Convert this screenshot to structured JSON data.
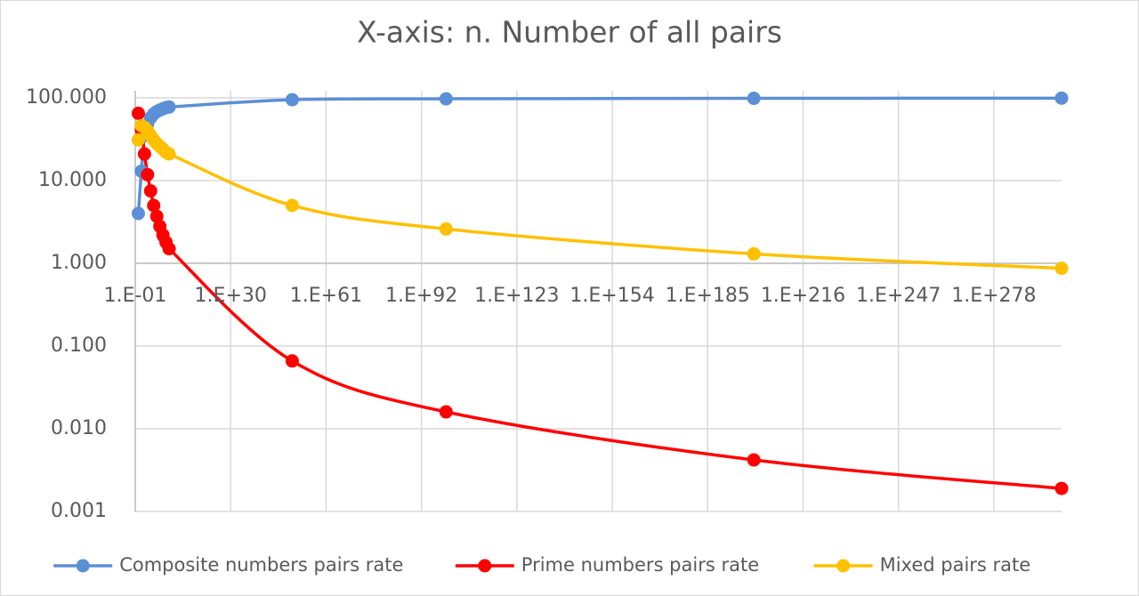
{
  "chart_data": {
    "type": "line",
    "title": "X-axis: n. Number of all pairs",
    "x_log": true,
    "y_log": true,
    "grid": true,
    "legend": "bottom",
    "smooth": true,
    "x_axis_crosses_at": 1,
    "x": [
      1,
      10,
      100,
      1000,
      10000,
      100000,
      1000000,
      10000000,
      100000000,
      1000000000,
      10000000000,
      1e+50,
      1e+100,
      1e+200,
      1e+300
    ],
    "xlim": [
      0.1,
      1e+300
    ],
    "xticks": [
      {
        "value": 0.1,
        "label": "1.E-01"
      },
      {
        "value": 1e+30,
        "label": "1.E+30"
      },
      {
        "value": 1e+61,
        "label": "1.E+61"
      },
      {
        "value": 1e+92,
        "label": "1.E+92"
      },
      {
        "value": 1e+123,
        "label": "1.E+123"
      },
      {
        "value": 1e+154,
        "label": "1.E+154"
      },
      {
        "value": 1e+185,
        "label": "1.E+185"
      },
      {
        "value": 1e+216,
        "label": "1.E+216"
      },
      {
        "value": 1e+247,
        "label": "1.E+247"
      },
      {
        "value": 1e+278,
        "label": "1.E+278"
      }
    ],
    "ylim": [
      0.001,
      100
    ],
    "yticks": [
      {
        "value": 0.001,
        "label": "0.001"
      },
      {
        "value": 0.01,
        "label": "0.010"
      },
      {
        "value": 0.1,
        "label": "0.100"
      },
      {
        "value": 1,
        "label": "1.000"
      },
      {
        "value": 10,
        "label": "10.000"
      },
      {
        "value": 100,
        "label": "100.000"
      }
    ],
    "series": [
      {
        "name": "Composite numbers pairs rate",
        "color": "#5b8fd6",
        "values": [
          4.0,
          13,
          35,
          48,
          57.5,
          64,
          68.3,
          71.2,
          73.8,
          76.2,
          77.5,
          95,
          97.4,
          98.7,
          99.1
        ]
      },
      {
        "name": "Prime numbers pairs rate",
        "color": "#ff0000",
        "values": [
          65,
          41,
          21,
          11.8,
          7.5,
          5,
          3.7,
          2.8,
          2.2,
          1.8,
          1.5,
          0.066,
          0.016,
          0.0042,
          0.0019
        ]
      },
      {
        "name": "Mixed pairs rate",
        "color": "#ffc000",
        "values": [
          31,
          46,
          44,
          40,
          35,
          31,
          28,
          26,
          24,
          22,
          21,
          5.0,
          2.6,
          1.3,
          0.87
        ]
      }
    ]
  }
}
